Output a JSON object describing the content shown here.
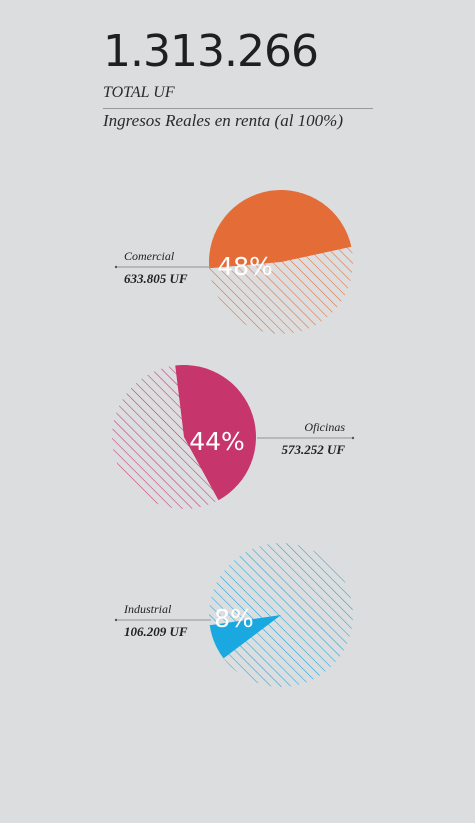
{
  "header": {
    "total_value": "1.313.266",
    "total_unit": "TOTAL UF",
    "subtitle": "Ingresos Reales en renta (al 100%)"
  },
  "chart_data": [
    {
      "type": "pie",
      "name": "Comercial",
      "value_label": "633.805 UF",
      "percent": 48,
      "percent_label": "48%",
      "color": "#e36c37",
      "label_side": "left"
    },
    {
      "type": "pie",
      "name": "Oficinas",
      "value_label": "573.252 UF",
      "percent": 44,
      "percent_label": "44%",
      "color": "#c6356b",
      "label_side": "right"
    },
    {
      "type": "pie",
      "name": "Industrial",
      "value_label": "106.209 UF",
      "percent": 8,
      "percent_label": "8%",
      "color": "#1aa8e0",
      "label_side": "left"
    }
  ]
}
